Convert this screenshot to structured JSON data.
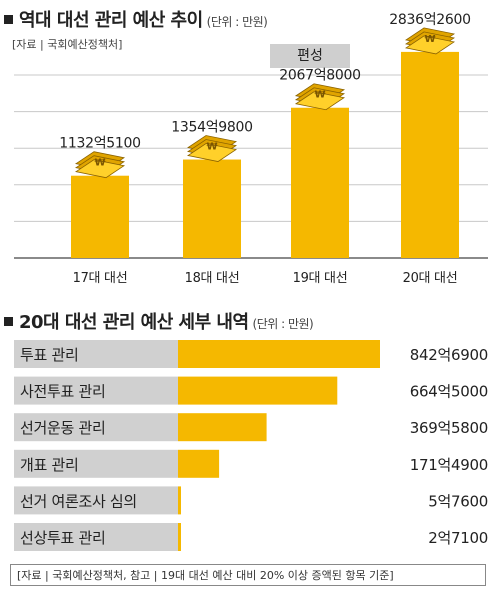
{
  "chart_data": [
    {
      "type": "bar",
      "title": "역대 대선 관리 예산 추이",
      "unit": "(단위 : 만원)",
      "source": "[자료 | 국회예산정책처]",
      "badge": "편성",
      "categories": [
        "17대 대선",
        "18대 대선",
        "19대 대선",
        "20대 대선"
      ],
      "values": [
        11325100,
        13549800,
        20678000,
        28362600
      ],
      "value_labels": [
        "1132억5100",
        "1354억9800",
        "2067억8000",
        "2836억2600"
      ],
      "ylim": [
        0,
        30000000
      ],
      "color": "#f5b800"
    },
    {
      "type": "bar",
      "orientation": "horizontal",
      "title": "20대 대선 관리 예산 세부 내역",
      "unit": "(단위 : 만원)",
      "categories": [
        "투표 관리",
        "사전투표 관리",
        "선거운동 관리",
        "개표 관리",
        "선거 여론조사 심의",
        "선상투표 관리"
      ],
      "values": [
        8426900,
        6645000,
        3695800,
        1714900,
        57600,
        27100
      ],
      "value_labels": [
        "842억6900",
        "664억5000",
        "369억5800",
        "171억4900",
        "5억7600",
        "2억7100"
      ],
      "xlim": [
        0,
        8426900
      ],
      "color": "#f5b800",
      "label_bg": "#d0d0d0"
    }
  ],
  "footer": "[자료 | 국회예산정책처, 참고 | 19대 대선 예산 대비 20% 이상 증액된 항목 기준]"
}
